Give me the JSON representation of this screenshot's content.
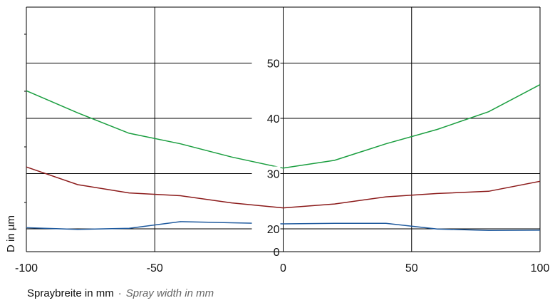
{
  "chart_data": {
    "type": "line",
    "xlabel_de": "Spraybreite in mm",
    "xlabel_separator": "·",
    "xlabel_en": "Spray width in mm",
    "ylabel": "D in µm",
    "xlim": [
      -100,
      100
    ],
    "ylim": [
      0,
      60
    ],
    "x_ticks": [
      "-100",
      "-50",
      "0",
      "50",
      "100"
    ],
    "x_tick_values": [
      -100,
      -50,
      0,
      50,
      100
    ],
    "y_tick_values": [
      0,
      20,
      30,
      40,
      50
    ],
    "y_ticks": [
      "0",
      "20",
      "30",
      "40",
      "50"
    ],
    "grid": true,
    "x": [
      -100,
      -80,
      -60,
      -40,
      -20,
      0,
      20,
      40,
      60,
      80,
      100
    ],
    "series": [
      {
        "color": "#1a9e3f",
        "values": [
          45.0,
          41.0,
          37.3,
          35.4,
          33.0,
          31.0,
          32.4,
          35.4,
          38.0,
          41.2,
          46.1
        ]
      },
      {
        "color": "#8b1a1a",
        "values": [
          31.2,
          28.0,
          26.5,
          26.0,
          24.7,
          23.8,
          24.5,
          25.8,
          26.4,
          26.8,
          28.6
        ]
      },
      {
        "color": "#1f5a9e",
        "values": [
          20.2,
          19.5,
          20.1,
          21.3,
          21.1,
          20.9,
          21.0,
          21.0,
          19.9,
          18.6,
          18.8
        ]
      }
    ]
  }
}
